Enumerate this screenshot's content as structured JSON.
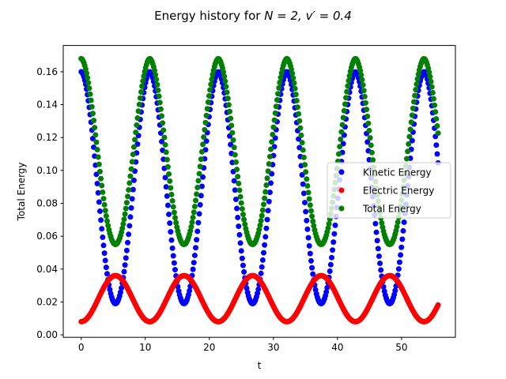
{
  "chart_data": {
    "type": "scatter",
    "title_prefix": "Energy history for ",
    "title_math": "N = 2, v′ = 0.4",
    "xlabel": "t",
    "ylabel": "Total Energy",
    "xlim": [
      -2.8,
      58.4
    ],
    "ylim": [
      -0.0015,
      0.176
    ],
    "xticks": [
      0,
      10,
      20,
      30,
      40,
      50
    ],
    "yticks": [
      0.0,
      0.02,
      0.04,
      0.06,
      0.08,
      0.1,
      0.12,
      0.14,
      0.16
    ],
    "ytick_labels": [
      "0.00",
      "0.02",
      "0.04",
      "0.06",
      "0.08",
      "0.10",
      "0.12",
      "0.14",
      "0.16"
    ],
    "grid": false,
    "legend_position": "center-right",
    "model": {
      "t_start": 0,
      "t_end": 55.7,
      "num_points": 400,
      "period": 10.7,
      "ke_max": 0.16,
      "ke_min": 0.019,
      "ke_phase_dip": 0.25,
      "ee_min": 0.008,
      "ee_max": 0.036,
      "total_max": 0.168,
      "total_min": 0.055
    },
    "series": [
      {
        "name": "Kinetic Energy",
        "color": "#0000ff"
      },
      {
        "name": "Electric Energy",
        "color": "#ff0000"
      },
      {
        "name": "Total Energy",
        "color": "#008000"
      }
    ]
  }
}
